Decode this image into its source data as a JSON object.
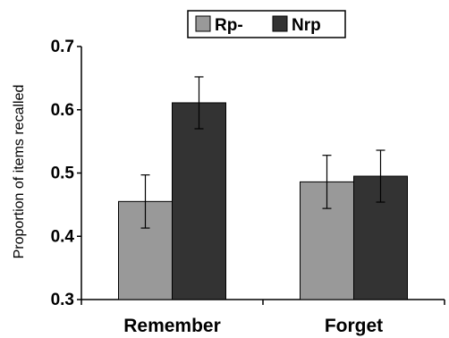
{
  "chart_data": {
    "type": "bar",
    "categories": [
      "Remember",
      "Forget"
    ],
    "series": [
      {
        "name": "Rp-",
        "values": [
          0.455,
          0.486
        ],
        "error": [
          0.042,
          0.042
        ],
        "color": "#999999"
      },
      {
        "name": "Nrp",
        "values": [
          0.611,
          0.495
        ],
        "error": [
          0.041,
          0.041
        ],
        "color": "#333333"
      }
    ],
    "title": "",
    "xlabel": "",
    "ylabel": "Proportion of items recalled",
    "ylim": [
      0.3,
      0.7
    ],
    "yticks": [
      "0.3",
      "0.4",
      "0.5",
      "0.6",
      "0.7"
    ],
    "grid": false,
    "legend_position": "top"
  }
}
